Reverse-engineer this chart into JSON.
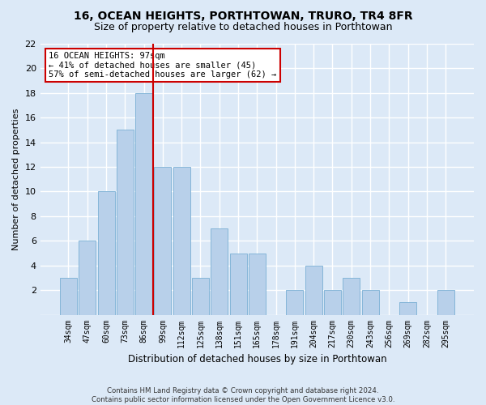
{
  "title": "16, OCEAN HEIGHTS, PORTHTOWAN, TRURO, TR4 8FR",
  "subtitle": "Size of property relative to detached houses in Porthtowan",
  "xlabel": "Distribution of detached houses by size in Porthtowan",
  "ylabel": "Number of detached properties",
  "categories": [
    "34sqm",
    "47sqm",
    "60sqm",
    "73sqm",
    "86sqm",
    "99sqm",
    "112sqm",
    "125sqm",
    "138sqm",
    "151sqm",
    "165sqm",
    "178sqm",
    "191sqm",
    "204sqm",
    "217sqm",
    "230sqm",
    "243sqm",
    "256sqm",
    "269sqm",
    "282sqm",
    "295sqm"
  ],
  "values": [
    3,
    6,
    10,
    15,
    18,
    12,
    12,
    3,
    7,
    5,
    5,
    0,
    2,
    4,
    2,
    3,
    2,
    0,
    1,
    0,
    2
  ],
  "bar_color": "#b8d0ea",
  "bar_edge_color": "#7aafd4",
  "vline_x": 5,
  "vline_color": "#cc0000",
  "annotation_text": "16 OCEAN HEIGHTS: 97sqm\n← 41% of detached houses are smaller (45)\n57% of semi-detached houses are larger (62) →",
  "annotation_box_color": "#ffffff",
  "annotation_box_edge_color": "#cc0000",
  "ylim": [
    0,
    22
  ],
  "yticks": [
    0,
    2,
    4,
    6,
    8,
    10,
    12,
    14,
    16,
    18,
    20,
    22
  ],
  "background_color": "#dce9f7",
  "axes_background_color": "#dce9f7",
  "grid_color": "#ffffff",
  "title_fontsize": 10,
  "subtitle_fontsize": 9,
  "footnote": "Contains HM Land Registry data © Crown copyright and database right 2024.\nContains public sector information licensed under the Open Government Licence v3.0."
}
